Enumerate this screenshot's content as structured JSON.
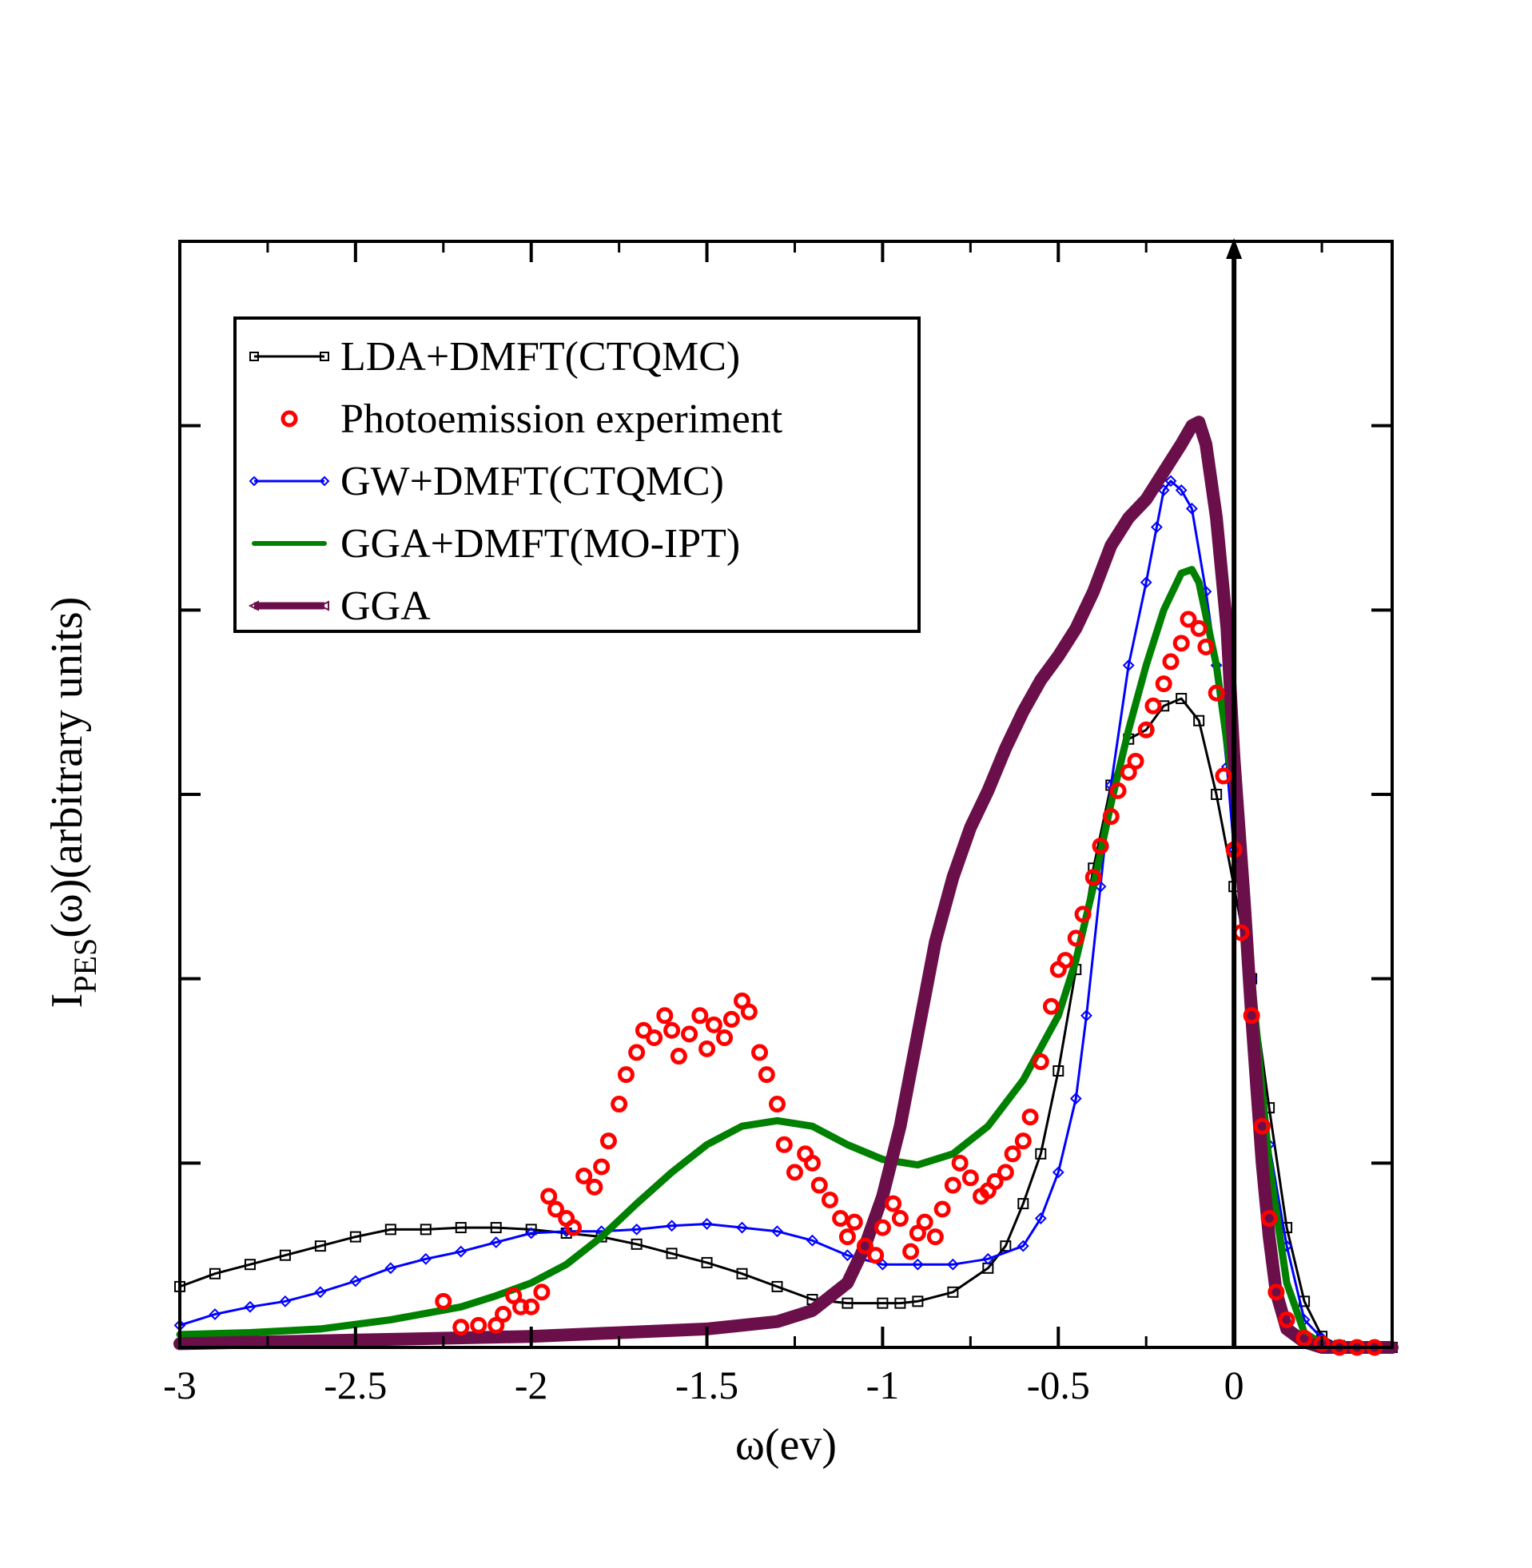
{
  "chart_data": {
    "type": "line",
    "xlabel": "ω(ev)",
    "ylabel": {
      "main": "I",
      "subscript": "PES",
      "rest": "(ω)(arbitrary units)"
    },
    "xlim": [
      -3,
      0.45
    ],
    "ylim": [
      0,
      6
    ],
    "x_tick_labels": [
      "-3",
      "-2.5",
      "-2",
      "-1.5",
      "-1",
      "-0.5",
      "0"
    ],
    "y_ticks": [
      1,
      2,
      3,
      4,
      5
    ],
    "y_tick_labels_shown": false,
    "fermi_level_arrow_x": 0,
    "legend": {
      "position": "top-left",
      "entries": [
        "LDA+DMFT(CTQMC)",
        "Photoemission experiment",
        "GW+DMFT(CTQMC)",
        "GGA+DMFT(MO-IPT)",
        "GGA"
      ]
    },
    "series": [
      {
        "name": "LDA+DMFT(CTQMC)",
        "color": "#000000",
        "marker": "square",
        "style": "line+markers",
        "points": [
          [
            -3.0,
            0.33
          ],
          [
            -2.9,
            0.4
          ],
          [
            -2.8,
            0.45
          ],
          [
            -2.7,
            0.5
          ],
          [
            -2.6,
            0.55
          ],
          [
            -2.5,
            0.6
          ],
          [
            -2.4,
            0.64
          ],
          [
            -2.3,
            0.64
          ],
          [
            -2.2,
            0.65
          ],
          [
            -2.1,
            0.65
          ],
          [
            -2.0,
            0.64
          ],
          [
            -1.9,
            0.62
          ],
          [
            -1.8,
            0.6
          ],
          [
            -1.7,
            0.56
          ],
          [
            -1.6,
            0.51
          ],
          [
            -1.5,
            0.46
          ],
          [
            -1.4,
            0.4
          ],
          [
            -1.3,
            0.33
          ],
          [
            -1.2,
            0.26
          ],
          [
            -1.1,
            0.24
          ],
          [
            -1.0,
            0.24
          ],
          [
            -0.95,
            0.24
          ],
          [
            -0.9,
            0.25
          ],
          [
            -0.8,
            0.3
          ],
          [
            -0.7,
            0.43
          ],
          [
            -0.65,
            0.55
          ],
          [
            -0.6,
            0.78
          ],
          [
            -0.55,
            1.05
          ],
          [
            -0.5,
            1.5
          ],
          [
            -0.45,
            2.05
          ],
          [
            -0.4,
            2.6
          ],
          [
            -0.35,
            3.05
          ],
          [
            -0.3,
            3.3
          ],
          [
            -0.25,
            3.35
          ],
          [
            -0.2,
            3.48
          ],
          [
            -0.15,
            3.52
          ],
          [
            -0.1,
            3.4
          ],
          [
            -0.05,
            3.0
          ],
          [
            0.0,
            2.5
          ],
          [
            0.05,
            2.0
          ],
          [
            0.1,
            1.3
          ],
          [
            0.15,
            0.65
          ],
          [
            0.2,
            0.25
          ],
          [
            0.25,
            0.06
          ],
          [
            0.3,
            0.01
          ],
          [
            0.35,
            0.0
          ],
          [
            0.45,
            0.0
          ]
        ]
      },
      {
        "name": "Photoemission experiment",
        "color": "#ff0000",
        "marker": "circle",
        "style": "markers",
        "points": [
          [
            -2.25,
            0.25
          ],
          [
            -2.2,
            0.11
          ],
          [
            -2.15,
            0.12
          ],
          [
            -2.1,
            0.12
          ],
          [
            -2.08,
            0.18
          ],
          [
            -2.05,
            0.28
          ],
          [
            -2.03,
            0.22
          ],
          [
            -2.0,
            0.22
          ],
          [
            -1.97,
            0.3
          ],
          [
            -1.95,
            0.82
          ],
          [
            -1.93,
            0.75
          ],
          [
            -1.9,
            0.7
          ],
          [
            -1.88,
            0.65
          ],
          [
            -1.85,
            0.93
          ],
          [
            -1.82,
            0.87
          ],
          [
            -1.8,
            0.98
          ],
          [
            -1.78,
            1.12
          ],
          [
            -1.75,
            1.32
          ],
          [
            -1.73,
            1.48
          ],
          [
            -1.7,
            1.6
          ],
          [
            -1.68,
            1.72
          ],
          [
            -1.65,
            1.68
          ],
          [
            -1.62,
            1.8
          ],
          [
            -1.6,
            1.72
          ],
          [
            -1.58,
            1.58
          ],
          [
            -1.55,
            1.7
          ],
          [
            -1.52,
            1.8
          ],
          [
            -1.5,
            1.62
          ],
          [
            -1.48,
            1.75
          ],
          [
            -1.45,
            1.68
          ],
          [
            -1.43,
            1.78
          ],
          [
            -1.4,
            1.88
          ],
          [
            -1.38,
            1.82
          ],
          [
            -1.35,
            1.6
          ],
          [
            -1.33,
            1.48
          ],
          [
            -1.3,
            1.32
          ],
          [
            -1.28,
            1.1
          ],
          [
            -1.25,
            0.95
          ],
          [
            -1.22,
            1.05
          ],
          [
            -1.2,
            1.0
          ],
          [
            -1.18,
            0.88
          ],
          [
            -1.15,
            0.8
          ],
          [
            -1.12,
            0.7
          ],
          [
            -1.1,
            0.6
          ],
          [
            -1.08,
            0.68
          ],
          [
            -1.05,
            0.55
          ],
          [
            -1.02,
            0.5
          ],
          [
            -1.0,
            0.65
          ],
          [
            -0.97,
            0.78
          ],
          [
            -0.95,
            0.7
          ],
          [
            -0.92,
            0.52
          ],
          [
            -0.9,
            0.62
          ],
          [
            -0.88,
            0.68
          ],
          [
            -0.85,
            0.6
          ],
          [
            -0.83,
            0.75
          ],
          [
            -0.8,
            0.88
          ],
          [
            -0.78,
            1.0
          ],
          [
            -0.75,
            0.92
          ],
          [
            -0.72,
            0.82
          ],
          [
            -0.7,
            0.85
          ],
          [
            -0.68,
            0.9
          ],
          [
            -0.65,
            0.95
          ],
          [
            -0.63,
            1.05
          ],
          [
            -0.6,
            1.12
          ],
          [
            -0.58,
            1.25
          ],
          [
            -0.55,
            1.55
          ],
          [
            -0.52,
            1.85
          ],
          [
            -0.5,
            2.05
          ],
          [
            -0.48,
            2.1
          ],
          [
            -0.45,
            2.22
          ],
          [
            -0.43,
            2.35
          ],
          [
            -0.4,
            2.55
          ],
          [
            -0.38,
            2.72
          ],
          [
            -0.35,
            2.88
          ],
          [
            -0.33,
            3.02
          ],
          [
            -0.3,
            3.12
          ],
          [
            -0.28,
            3.18
          ],
          [
            -0.25,
            3.35
          ],
          [
            -0.23,
            3.48
          ],
          [
            -0.2,
            3.6
          ],
          [
            -0.18,
            3.72
          ],
          [
            -0.15,
            3.82
          ],
          [
            -0.13,
            3.95
          ],
          [
            -0.1,
            3.9
          ],
          [
            -0.08,
            3.8
          ],
          [
            -0.05,
            3.55
          ],
          [
            -0.03,
            3.1
          ],
          [
            0.0,
            2.7
          ],
          [
            0.02,
            2.25
          ],
          [
            0.05,
            1.8
          ],
          [
            0.08,
            1.2
          ],
          [
            0.1,
            0.7
          ],
          [
            0.12,
            0.3
          ],
          [
            0.15,
            0.15
          ],
          [
            0.2,
            0.05
          ],
          [
            0.25,
            0.02
          ],
          [
            0.3,
            0.0
          ],
          [
            0.35,
            0.0
          ],
          [
            0.4,
            0.0
          ]
        ]
      },
      {
        "name": "GW+DMFT(CTQMC)",
        "color": "#0000ff",
        "marker": "diamond",
        "style": "line+markers",
        "points": [
          [
            -3.0,
            0.12
          ],
          [
            -2.9,
            0.18
          ],
          [
            -2.8,
            0.22
          ],
          [
            -2.7,
            0.25
          ],
          [
            -2.6,
            0.3
          ],
          [
            -2.5,
            0.36
          ],
          [
            -2.4,
            0.43
          ],
          [
            -2.3,
            0.48
          ],
          [
            -2.2,
            0.52
          ],
          [
            -2.1,
            0.57
          ],
          [
            -2.0,
            0.62
          ],
          [
            -1.9,
            0.63
          ],
          [
            -1.8,
            0.63
          ],
          [
            -1.7,
            0.64
          ],
          [
            -1.6,
            0.66
          ],
          [
            -1.5,
            0.67
          ],
          [
            -1.4,
            0.65
          ],
          [
            -1.3,
            0.63
          ],
          [
            -1.2,
            0.58
          ],
          [
            -1.1,
            0.5
          ],
          [
            -1.0,
            0.45
          ],
          [
            -0.9,
            0.45
          ],
          [
            -0.8,
            0.45
          ],
          [
            -0.7,
            0.48
          ],
          [
            -0.6,
            0.55
          ],
          [
            -0.55,
            0.7
          ],
          [
            -0.5,
            0.95
          ],
          [
            -0.45,
            1.35
          ],
          [
            -0.42,
            1.8
          ],
          [
            -0.38,
            2.5
          ],
          [
            -0.35,
            3.05
          ],
          [
            -0.3,
            3.7
          ],
          [
            -0.25,
            4.15
          ],
          [
            -0.22,
            4.45
          ],
          [
            -0.2,
            4.65
          ],
          [
            -0.18,
            4.7
          ],
          [
            -0.15,
            4.65
          ],
          [
            -0.12,
            4.55
          ],
          [
            -0.08,
            4.1
          ],
          [
            -0.05,
            3.7
          ],
          [
            -0.02,
            3.15
          ],
          [
            0.0,
            2.7
          ],
          [
            0.05,
            2.0
          ],
          [
            0.1,
            1.1
          ],
          [
            0.15,
            0.55
          ],
          [
            0.2,
            0.15
          ],
          [
            0.25,
            0.05
          ],
          [
            0.3,
            0.01
          ],
          [
            0.35,
            0.0
          ],
          [
            0.45,
            0.0
          ]
        ]
      },
      {
        "name": "GGA+DMFT(MO-IPT)",
        "color": "#008000",
        "marker": "dot",
        "style": "line",
        "points": [
          [
            -3.0,
            0.07
          ],
          [
            -2.8,
            0.08
          ],
          [
            -2.6,
            0.1
          ],
          [
            -2.4,
            0.15
          ],
          [
            -2.2,
            0.22
          ],
          [
            -2.1,
            0.28
          ],
          [
            -2.0,
            0.35
          ],
          [
            -1.9,
            0.45
          ],
          [
            -1.8,
            0.6
          ],
          [
            -1.7,
            0.78
          ],
          [
            -1.6,
            0.95
          ],
          [
            -1.5,
            1.1
          ],
          [
            -1.4,
            1.2
          ],
          [
            -1.3,
            1.23
          ],
          [
            -1.2,
            1.2
          ],
          [
            -1.1,
            1.1
          ],
          [
            -1.0,
            1.02
          ],
          [
            -0.9,
            0.99
          ],
          [
            -0.8,
            1.05
          ],
          [
            -0.7,
            1.2
          ],
          [
            -0.6,
            1.45
          ],
          [
            -0.5,
            1.8
          ],
          [
            -0.45,
            2.1
          ],
          [
            -0.4,
            2.5
          ],
          [
            -0.35,
            2.95
          ],
          [
            -0.3,
            3.35
          ],
          [
            -0.25,
            3.7
          ],
          [
            -0.2,
            4.0
          ],
          [
            -0.15,
            4.2
          ],
          [
            -0.12,
            4.22
          ],
          [
            -0.1,
            4.15
          ],
          [
            -0.05,
            3.7
          ],
          [
            0.0,
            3.0
          ],
          [
            0.05,
            2.0
          ],
          [
            0.1,
            1.0
          ],
          [
            0.15,
            0.35
          ],
          [
            0.2,
            0.08
          ],
          [
            0.25,
            0.02
          ],
          [
            0.3,
            0.0
          ],
          [
            0.45,
            0.0
          ]
        ]
      },
      {
        "name": "GGA",
        "color": "#6b0f4b",
        "marker": "triangle-left",
        "style": "line",
        "points": [
          [
            -3.0,
            0.02
          ],
          [
            -2.5,
            0.04
          ],
          [
            -2.0,
            0.06
          ],
          [
            -1.5,
            0.1
          ],
          [
            -1.3,
            0.14
          ],
          [
            -1.2,
            0.2
          ],
          [
            -1.1,
            0.35
          ],
          [
            -1.05,
            0.55
          ],
          [
            -1.0,
            0.82
          ],
          [
            -0.95,
            1.2
          ],
          [
            -0.9,
            1.7
          ],
          [
            -0.85,
            2.2
          ],
          [
            -0.8,
            2.55
          ],
          [
            -0.75,
            2.82
          ],
          [
            -0.7,
            3.02
          ],
          [
            -0.65,
            3.25
          ],
          [
            -0.6,
            3.45
          ],
          [
            -0.55,
            3.62
          ],
          [
            -0.5,
            3.75
          ],
          [
            -0.45,
            3.9
          ],
          [
            -0.4,
            4.1
          ],
          [
            -0.35,
            4.35
          ],
          [
            -0.3,
            4.5
          ],
          [
            -0.25,
            4.6
          ],
          [
            -0.2,
            4.75
          ],
          [
            -0.15,
            4.9
          ],
          [
            -0.12,
            5.0
          ],
          [
            -0.1,
            5.02
          ],
          [
            -0.08,
            4.9
          ],
          [
            -0.05,
            4.5
          ],
          [
            -0.02,
            3.9
          ],
          [
            0.0,
            3.2
          ],
          [
            0.03,
            2.4
          ],
          [
            0.05,
            1.8
          ],
          [
            0.08,
            1.0
          ],
          [
            0.1,
            0.6
          ],
          [
            0.12,
            0.3
          ],
          [
            0.15,
            0.1
          ],
          [
            0.2,
            0.03
          ],
          [
            0.25,
            0.0
          ],
          [
            0.45,
            0.0
          ]
        ]
      }
    ]
  }
}
